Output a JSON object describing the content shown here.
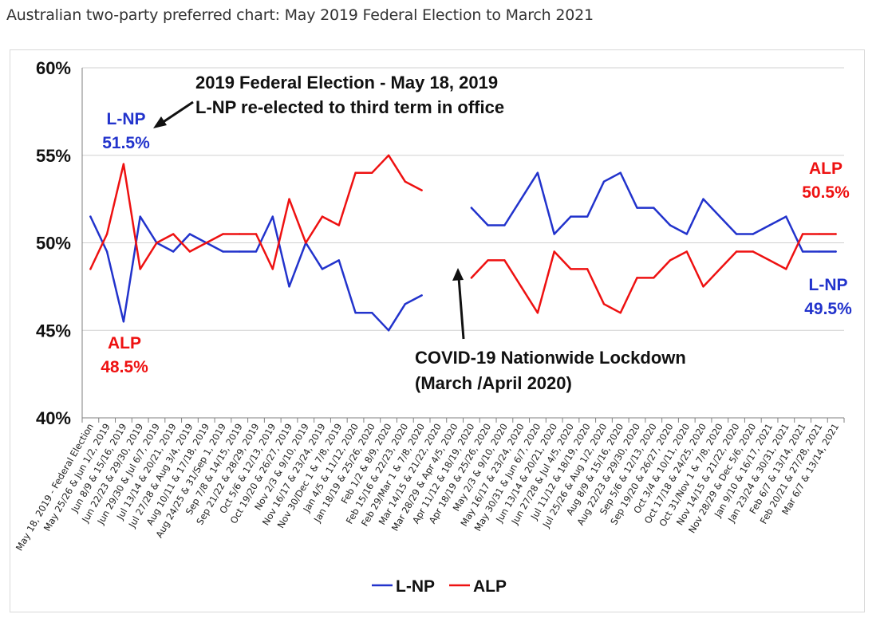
{
  "page_title": "Australian two-party preferred chart: May 2019 Federal Election to March 2021",
  "chart_data": {
    "type": "line",
    "title": "",
    "xlabel": "",
    "ylabel": "",
    "ylim": [
      40,
      60
    ],
    "yticks": [
      40,
      45,
      50,
      55,
      60
    ],
    "ytick_labels": [
      "40%",
      "45%",
      "50%",
      "55%",
      "60%"
    ],
    "grid": true,
    "legend": "bottom-center",
    "categories": [
      "May 18, 2019 - Federal Election",
      "May 25/26 & Jun 1/2, 2019",
      "Jun 8/9 & 15/16, 2019",
      "Jun 22/23 & 29/30, 2019",
      "Jun 29/30 & Jul 6/7, 2019",
      "Jul 13/14 & 20/21, 2019",
      "Jul 27/28 & Aug 3/4, 2019",
      "Aug 10/11 & 17/18, 2019",
      "Aug 24/25 & 31/Sep 1, 2019",
      "Sep 7/8 & 14/15, 2019",
      "Sep 21/22 & 28/29, 2019",
      "Oct 5/6 & 12/13, 2019",
      "Oct 19/20 & 26/27, 2019",
      "Nov 2/3 & 9/10, 2019",
      "Nov 16/17 & 23/24, 2019",
      "Nov 30/Dec 1 & 7/8, 2019",
      "Jan 4/5 & 11/12, 2020",
      "Jan 18/19 & 25/26, 2020",
      "Feb 1/2 & 8/9, 2020",
      "Feb 15/16 & 22/23, 2020",
      "Feb 29/Mar 1 & 7/8, 2020",
      "Mar 14/15 & 21/22, 2020",
      "Mar 28/29 & Apr 4/5, 2020",
      "Apr 11/12 & 18/19, 2020",
      "Apr 18/19 & 25/26, 2020",
      "May 2/3 & 9/10, 2020",
      "May 16/17 & 23/24, 2020",
      "May 30/31 & Jun 6/7, 2020",
      "Jun 13/14 & 20/21, 2020",
      "Jun 27/28 & Jul 4/5, 2020",
      "Jul 11/12 & 18/19, 2020",
      "Jul 25/26 & Aug 1/2, 2020",
      "Aug 8/9 & 15/16, 2020",
      "Aug 22/23 & 29/30, 2020",
      "Sep 5/6 & 12/13, 2020",
      "Sep 19/20 & 26/27, 2020",
      "Oct 3/4 & 10/11, 2020",
      "Oct 17/18 & 24/25, 2020",
      "Oct 31/Nov 1 & 7/8, 2020",
      "Nov 14/15 & 21/22, 2020",
      "Nov 28/29 & Dec 5/6, 2020",
      "Jan 9/10 & 16/17, 2021",
      "Jan 23/24 & 30/31, 2021",
      "Feb 6/7 & 13/14, 2021",
      "Feb 20/21 & 27/28, 2021",
      "Mar 6/7 & 13/14, 2021"
    ],
    "series": [
      {
        "name": "L-NP",
        "color": "#2233cc",
        "values": [
          51.5,
          49.5,
          45.5,
          51.5,
          50,
          49.5,
          50.5,
          50,
          49.5,
          49.5,
          49.5,
          51.5,
          47.5,
          50,
          48.5,
          49,
          46,
          46,
          45,
          46.5,
          47,
          null,
          null,
          52,
          51,
          51,
          52.5,
          54,
          50.5,
          51.5,
          51.5,
          53.5,
          54,
          52,
          52,
          51,
          50.5,
          52.5,
          51.5,
          50.5,
          50.5,
          51,
          51.5,
          49.5,
          49.5,
          49.5
        ]
      },
      {
        "name": "ALP",
        "color": "#ee1111",
        "values": [
          48.5,
          50.5,
          54.5,
          48.5,
          50,
          50.5,
          49.5,
          50,
          50.5,
          50.5,
          50.5,
          48.5,
          52.5,
          50,
          51.5,
          51,
          54,
          54,
          55,
          53.5,
          53,
          null,
          null,
          48,
          49,
          49,
          47.5,
          46,
          49.5,
          48.5,
          48.5,
          46.5,
          46,
          48,
          48,
          49,
          49.5,
          47.5,
          48.5,
          49.5,
          49.5,
          49,
          48.5,
          50.5,
          50.5,
          50.5
        ]
      }
    ],
    "annotations": {
      "election_line1": "2019 Federal Election - May 18, 2019",
      "election_line2": "L-NP re-elected to third term in office",
      "lnp_start_label": "L-NP",
      "lnp_start_value": "51.5%",
      "alp_start_label": "ALP",
      "alp_start_value": "48.5%",
      "covid_line1": "COVID-19 Nationwide Lockdown",
      "covid_line2": "(March /April 2020)",
      "alp_end_label": "ALP",
      "alp_end_value": "50.5%",
      "lnp_end_label": "L-NP",
      "lnp_end_value": "49.5%"
    },
    "legend_items": [
      "L-NP",
      "ALP"
    ]
  }
}
